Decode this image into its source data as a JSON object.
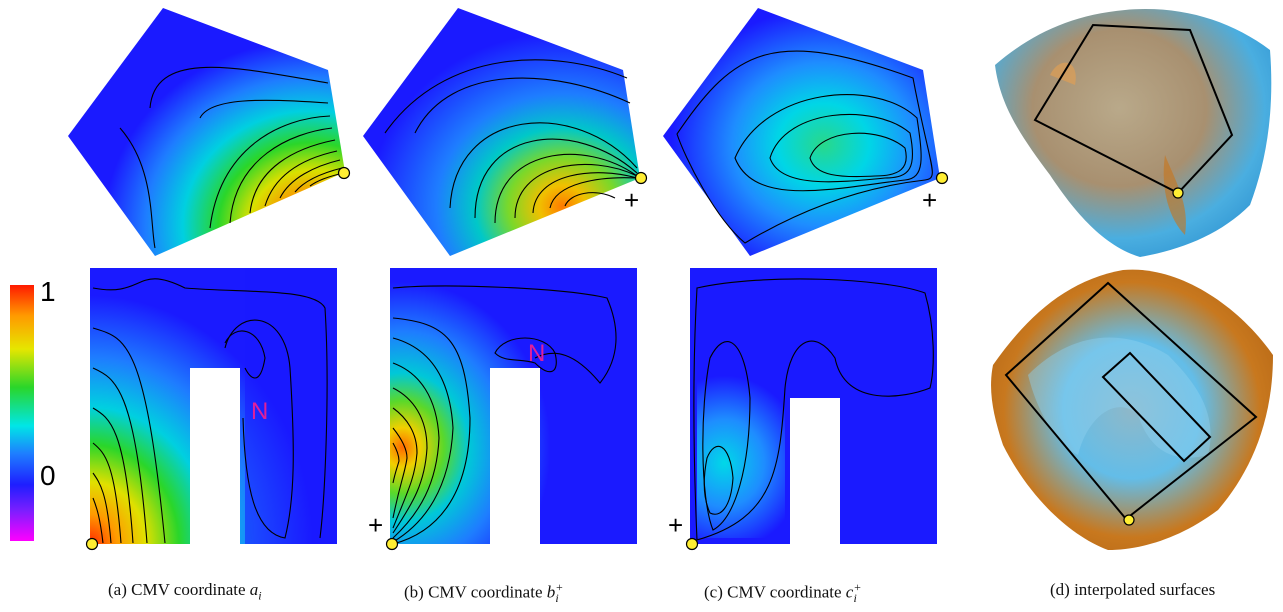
{
  "colorbar": {
    "max_label": "1",
    "min_label": "0",
    "colors": [
      "#ff1a00",
      "#ff9a00",
      "#e6e600",
      "#2ad62a",
      "#00e6e6",
      "#1e7dff",
      "#1e1eff",
      "#7a1eff",
      "#ff00ff"
    ]
  },
  "markers": {
    "plus": "+",
    "n": "N"
  },
  "captions": {
    "a": {
      "prefix": "(a)  CMV coordinate ",
      "var": "a",
      "sub": "i",
      "sup": ""
    },
    "b": {
      "prefix": "(b)  CMV coordinate ",
      "var": "b",
      "sub": "i",
      "sup": "+"
    },
    "c": {
      "prefix": "(c)  CMV coordinate ",
      "var": "c",
      "sub": "i",
      "sup": "+"
    },
    "d": {
      "text": "(d)  interpolated surfaces"
    }
  },
  "colors": {
    "field_blue": "#1a1aff",
    "vertex_marker": "#ffee33",
    "contour": "#000000",
    "surface_orange": "#c8741a",
    "surface_blue": "#39a6e0"
  }
}
